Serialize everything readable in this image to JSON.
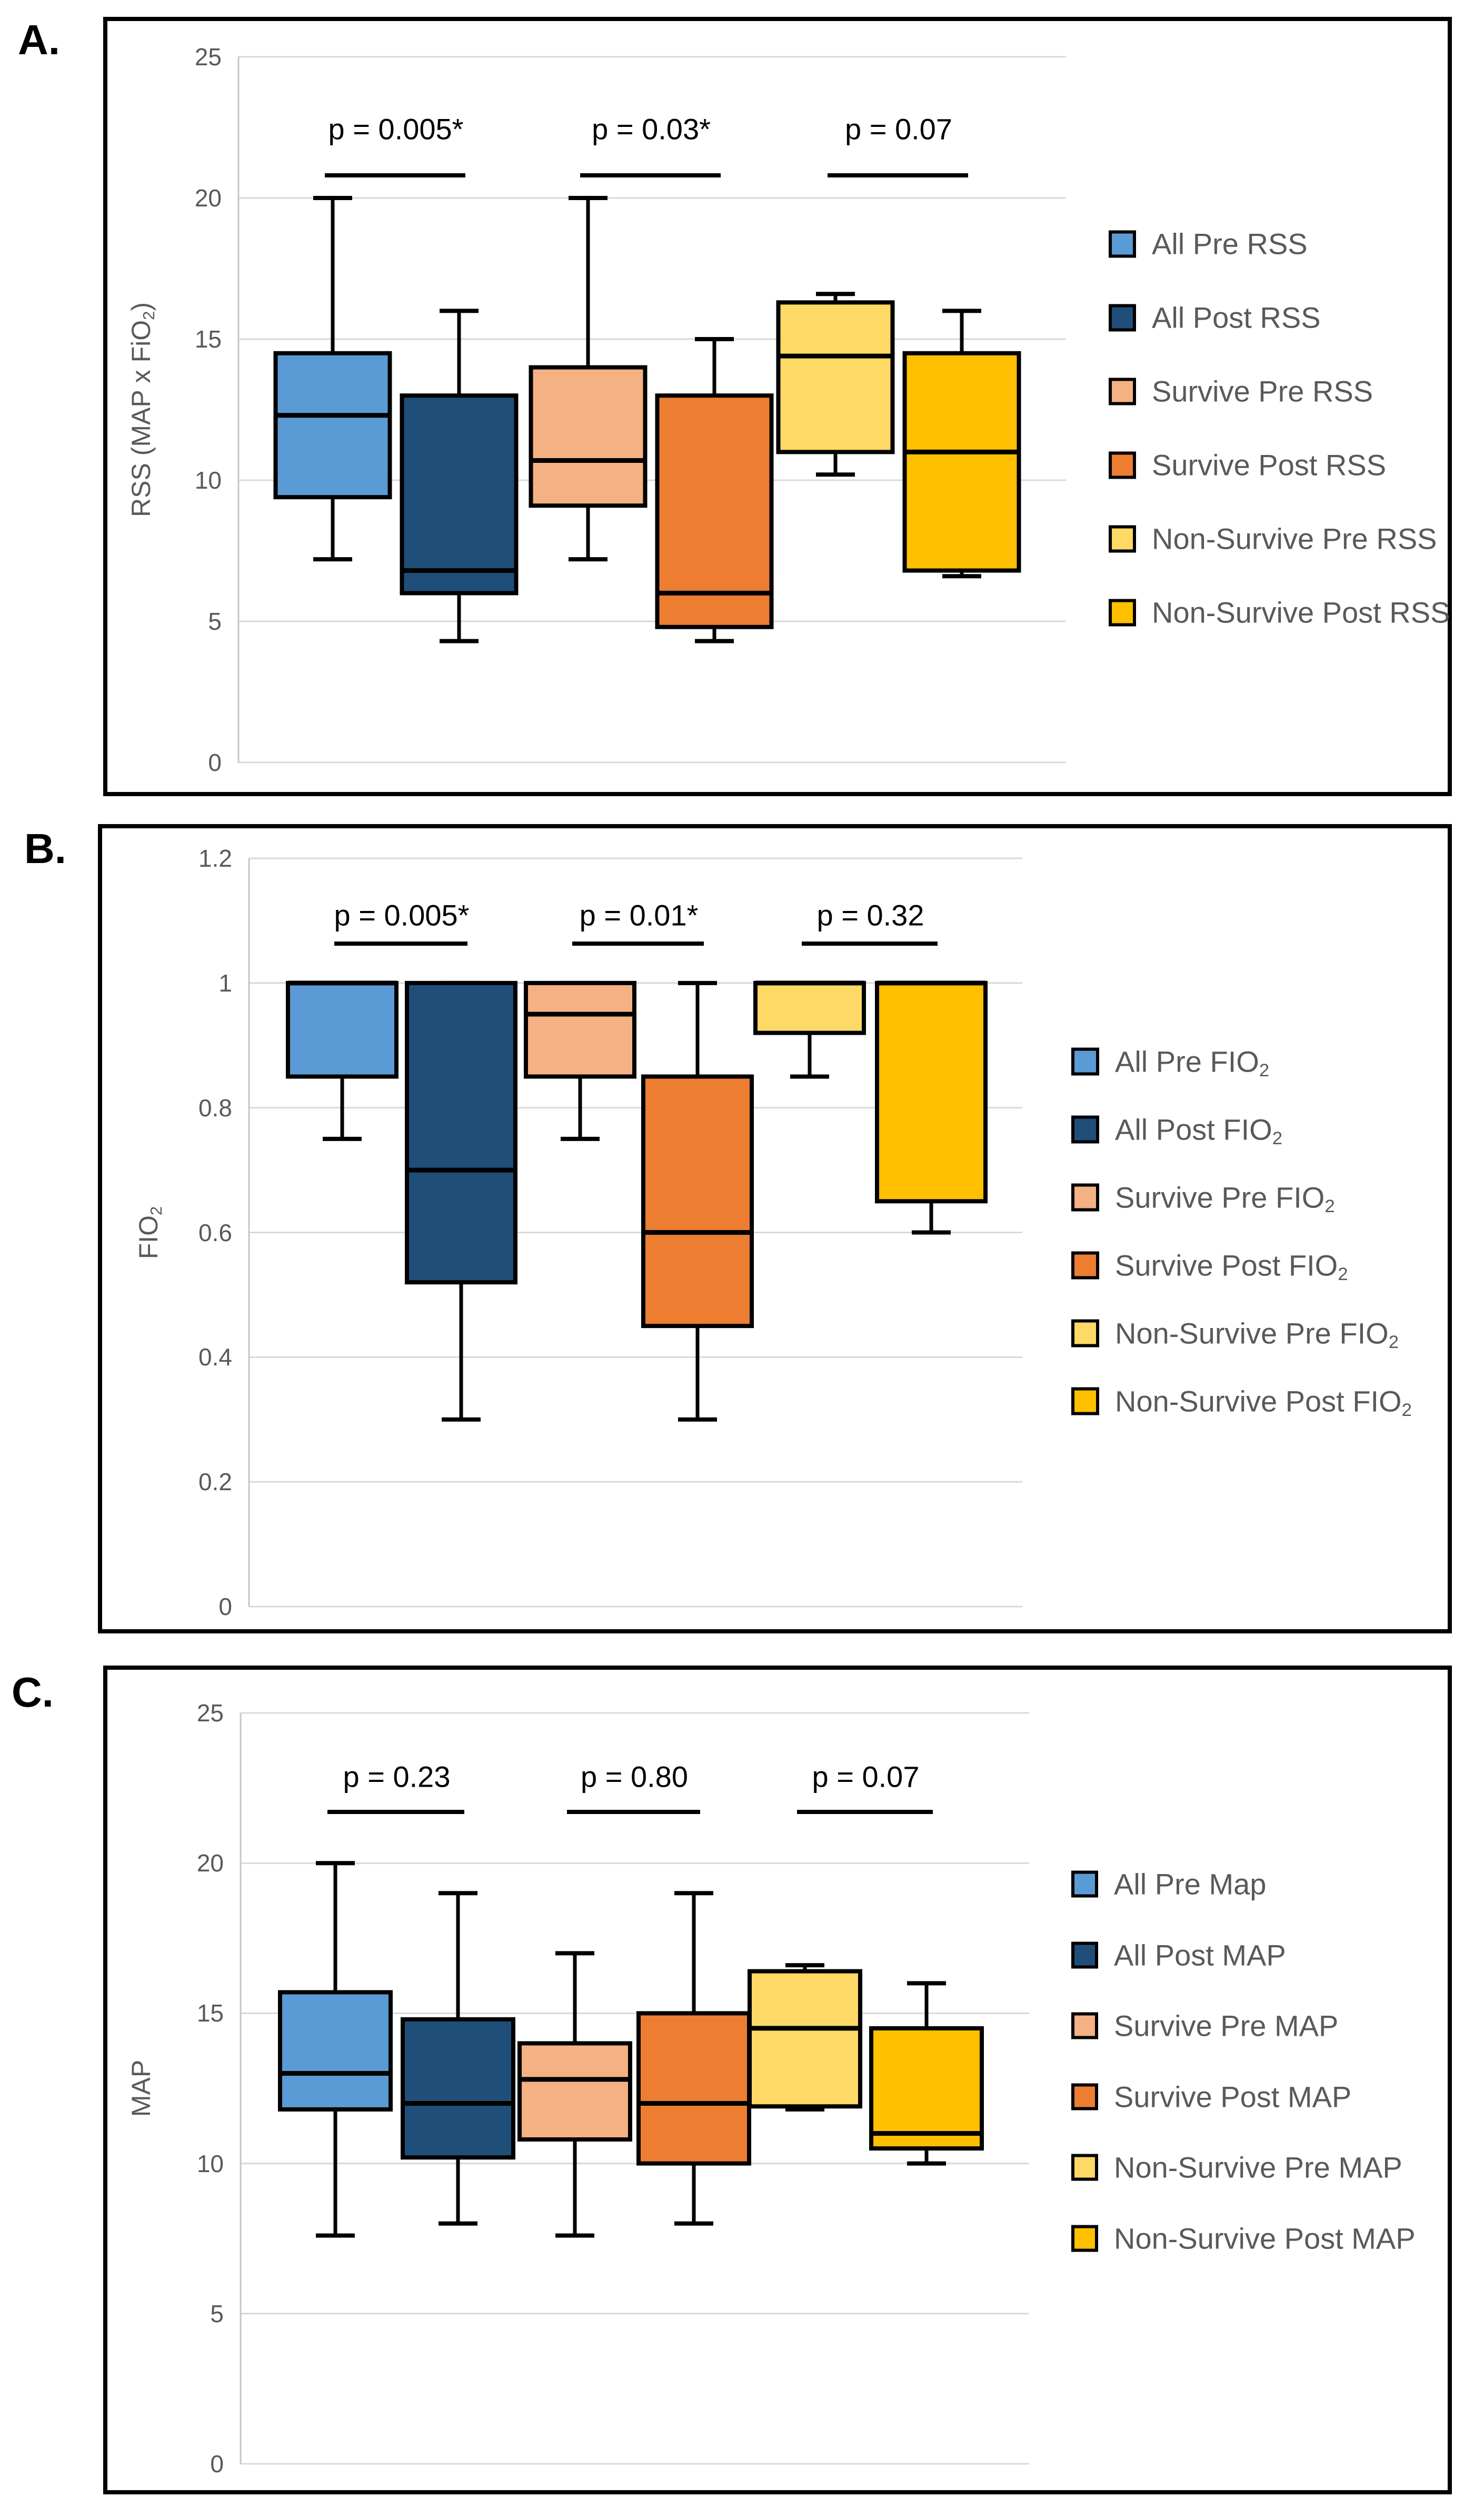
{
  "figure": {
    "background": "#ffffff",
    "panel_letters": [
      "A.",
      "B.",
      "C."
    ]
  },
  "colors": {
    "all_pre": "#5B9BD5",
    "all_post": "#1F4E79",
    "survive_pre": "#F4B183",
    "survive_post": "#ED7D31",
    "non_survive_pre": "#FFD966",
    "non_survive_post": "#FFC000",
    "gridline": "#D9D9D9",
    "axis_line": "#C6C6C6",
    "tick_text": "#595959",
    "legend_text": "#595959",
    "p_text": "#000000",
    "box_outline": "#000000"
  },
  "chart_data": [
    {
      "id": "A",
      "panel_label": "A.",
      "type": "boxplot",
      "title": "",
      "xlabel": "",
      "ylabel": "RSS (MAP x FiO₂)",
      "ylim": [
        0,
        25
      ],
      "yticks": [
        "0",
        "5",
        "10",
        "15",
        "20",
        "25"
      ],
      "grid": true,
      "legend_position": "right",
      "series": [
        {
          "name": "All Pre RSS",
          "color": "#5B9BD5",
          "min": 7.2,
          "q1": 9.4,
          "median": 12.3,
          "q3": 14.5,
          "max": 20
        },
        {
          "name": "All Post RSS",
          "color": "#1F4E79",
          "min": 4.3,
          "q1": 6.0,
          "median": 6.8,
          "q3": 13.0,
          "max": 16
        },
        {
          "name": "Survive Pre RSS",
          "color": "#F4B183",
          "min": 7.2,
          "q1": 9.1,
          "median": 10.7,
          "q3": 14.0,
          "max": 20
        },
        {
          "name": "Survive Post RSS",
          "color": "#ED7D31",
          "min": 4.3,
          "q1": 4.8,
          "median": 6.0,
          "q3": 13.0,
          "max": 15
        },
        {
          "name": "Non-Survive Pre RSS",
          "color": "#FFD966",
          "min": 10.2,
          "q1": 11.0,
          "median": 14.4,
          "q3": 16.3,
          "max": 16.6
        },
        {
          "name": "Non-Survive Post RSS",
          "color": "#FFC000",
          "min": 6.6,
          "q1": 6.8,
          "median": 11.0,
          "q3": 14.5,
          "max": 16
        }
      ],
      "significance": [
        {
          "pair": [
            0,
            1
          ],
          "label": "p = 0.005*"
        },
        {
          "pair": [
            2,
            3
          ],
          "label": "p = 0.03*"
        },
        {
          "pair": [
            4,
            5
          ],
          "label": "p = 0.07"
        }
      ]
    },
    {
      "id": "B",
      "panel_label": "B.",
      "type": "boxplot",
      "title": "",
      "xlabel": "",
      "ylabel": "FIO₂",
      "ylim": [
        0,
        1.2
      ],
      "yticks": [
        "0",
        "0.2",
        "0.4",
        "0.6",
        "0.8",
        "1",
        "1.2"
      ],
      "grid": true,
      "legend_position": "right",
      "series": [
        {
          "name": "All Pre FIO₂",
          "color": "#5B9BD5",
          "min": 0.75,
          "q1": 0.85,
          "median": 1.0,
          "q3": 1.0,
          "max": 1.0
        },
        {
          "name": "All Post FIO₂",
          "color": "#1F4E79",
          "min": 0.3,
          "q1": 0.52,
          "median": 0.7,
          "q3": 1.0,
          "max": 1.0
        },
        {
          "name": "Survive Pre FIO₂",
          "color": "#F4B183",
          "min": 0.75,
          "q1": 0.85,
          "median": 0.95,
          "q3": 1.0,
          "max": 1.0
        },
        {
          "name": "Survive Post FIO₂",
          "color": "#ED7D31",
          "min": 0.3,
          "q1": 0.45,
          "median": 0.6,
          "q3": 0.85,
          "max": 1.0
        },
        {
          "name": "Non-Survive Pre FIO₂",
          "color": "#FFD966",
          "min": 0.85,
          "q1": 0.92,
          "median": 1.0,
          "q3": 1.0,
          "max": 1.0
        },
        {
          "name": "Non-Survive Post FIO₂",
          "color": "#FFC000",
          "min": 0.6,
          "q1": 0.65,
          "median": 1.0,
          "q3": 1.0,
          "max": 1.0
        }
      ],
      "significance": [
        {
          "pair": [
            0,
            1
          ],
          "label": "p = 0.005*"
        },
        {
          "pair": [
            2,
            3
          ],
          "label": "p = 0.01*"
        },
        {
          "pair": [
            4,
            5
          ],
          "label": "p = 0.32"
        }
      ]
    },
    {
      "id": "C",
      "panel_label": "C.",
      "type": "boxplot",
      "title": "",
      "xlabel": "",
      "ylabel": "MAP",
      "ylim": [
        0,
        25
      ],
      "yticks": [
        "0",
        "5",
        "10",
        "15",
        "20",
        "25"
      ],
      "grid": true,
      "legend_position": "right",
      "series": [
        {
          "name": "All Pre Map",
          "color": "#5B9BD5",
          "min": 7.6,
          "q1": 11.8,
          "median": 13.0,
          "q3": 15.7,
          "max": 20
        },
        {
          "name": "All Post MAP",
          "color": "#1F4E79",
          "min": 8.0,
          "q1": 10.2,
          "median": 12.0,
          "q3": 14.8,
          "max": 19
        },
        {
          "name": "Survive Pre MAP",
          "color": "#F4B183",
          "min": 7.6,
          "q1": 10.8,
          "median": 12.8,
          "q3": 14.0,
          "max": 17
        },
        {
          "name": "Survive Post MAP",
          "color": "#ED7D31",
          "min": 8.0,
          "q1": 10.0,
          "median": 12.0,
          "q3": 15.0,
          "max": 19
        },
        {
          "name": "Non-Survive Pre MAP",
          "color": "#FFD966",
          "min": 11.8,
          "q1": 11.9,
          "median": 14.5,
          "q3": 16.4,
          "max": 16.6
        },
        {
          "name": "Non-Survive Post MAP",
          "color": "#FFC000",
          "min": 10.0,
          "q1": 10.5,
          "median": 11.0,
          "q3": 14.5,
          "max": 16
        }
      ],
      "significance": [
        {
          "pair": [
            0,
            1
          ],
          "label": "p = 0.23"
        },
        {
          "pair": [
            2,
            3
          ],
          "label": "p = 0.80"
        },
        {
          "pair": [
            4,
            5
          ],
          "label": "p = 0.07"
        }
      ]
    }
  ]
}
